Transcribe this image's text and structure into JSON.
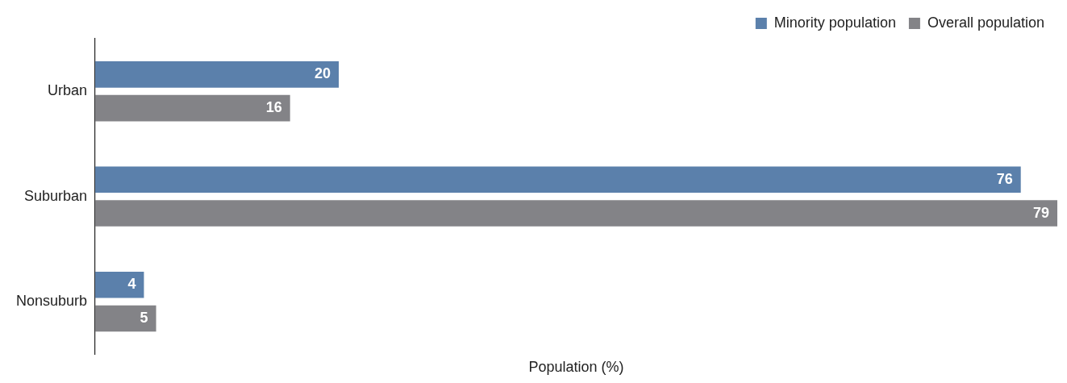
{
  "chart_data": {
    "type": "bar",
    "orientation": "horizontal",
    "xlabel": "Population (%)",
    "categories": [
      "Urban",
      "Suburban",
      "Nonsuburb"
    ],
    "series": [
      {
        "name": "Minority population",
        "color": "#5b80ab",
        "values": [
          20,
          76,
          4
        ]
      },
      {
        "name": "Overall population",
        "color": "#838387",
        "values": [
          16,
          79,
          5
        ]
      }
    ],
    "xlim": [
      0,
      79
    ],
    "tick_labels": "y",
    "grid": false,
    "legend": "top right",
    "data_labels": true
  }
}
